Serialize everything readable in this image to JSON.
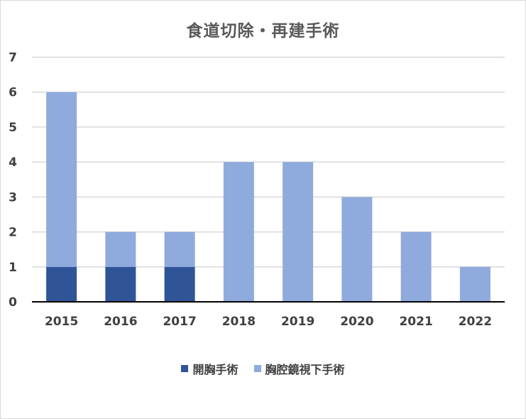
{
  "chart_data": {
    "type": "bar",
    "stacked": true,
    "title": "食道切除・再建手術",
    "categories": [
      "2015",
      "2016",
      "2017",
      "2018",
      "2019",
      "2020",
      "2021",
      "2022"
    ],
    "series": [
      {
        "name": "開胸手術",
        "color": "#2f5597",
        "values": [
          1,
          1,
          1,
          0,
          0,
          0,
          0,
          0
        ]
      },
      {
        "name": "胸腔鏡視下手術",
        "color": "#8faadc",
        "values": [
          5,
          1,
          1,
          4,
          4,
          3,
          2,
          1
        ]
      }
    ],
    "ylim": [
      0,
      7
    ],
    "yticks": [
      0,
      1,
      2,
      3,
      4,
      5,
      6,
      7
    ],
    "grid": true,
    "legend_position": "bottom"
  }
}
